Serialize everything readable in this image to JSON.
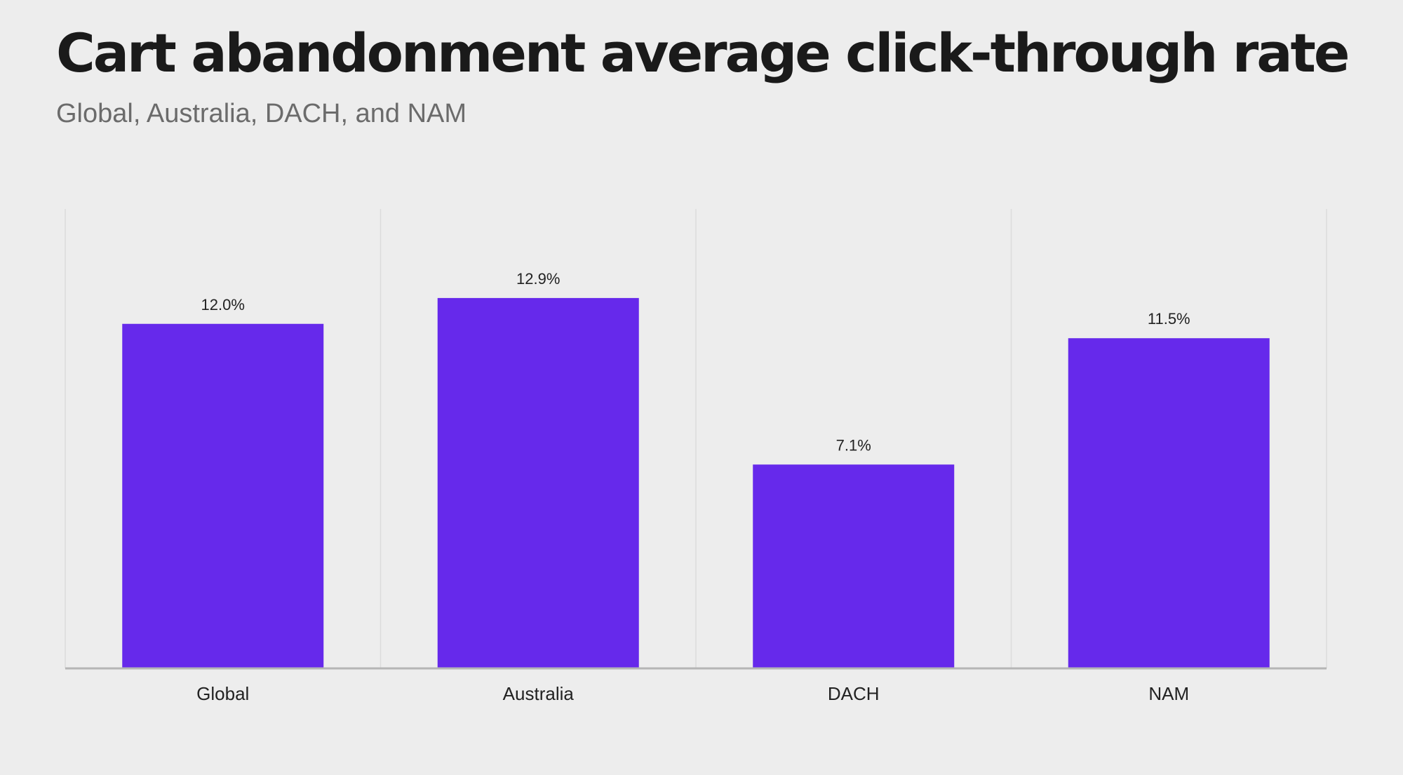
{
  "title": "Cart abandonment average click-through rate",
  "subtitle": "Global, Australia, DACH, and NAM",
  "colors": {
    "bar": "#6629eb",
    "background": "#ededed",
    "gridline": "#dcdcdc",
    "axis": "#b5b5b5",
    "title": "#1a1a1a",
    "subtitle": "#6b6b6b",
    "label": "#222222"
  },
  "chart_data": {
    "type": "bar",
    "categories": [
      "Global",
      "Australia",
      "DACH",
      "NAM"
    ],
    "values": [
      12.0,
      12.9,
      7.1,
      11.5
    ],
    "data_labels": [
      "12.0%",
      "12.9%",
      "7.1%",
      "11.5%"
    ],
    "title": "Cart abandonment average click-through rate",
    "subtitle": "Global, Australia, DACH, and NAM",
    "xlabel": "",
    "ylabel": "",
    "ylim": [
      0,
      16
    ],
    "grid": "vertical category separators",
    "legend": "none"
  }
}
